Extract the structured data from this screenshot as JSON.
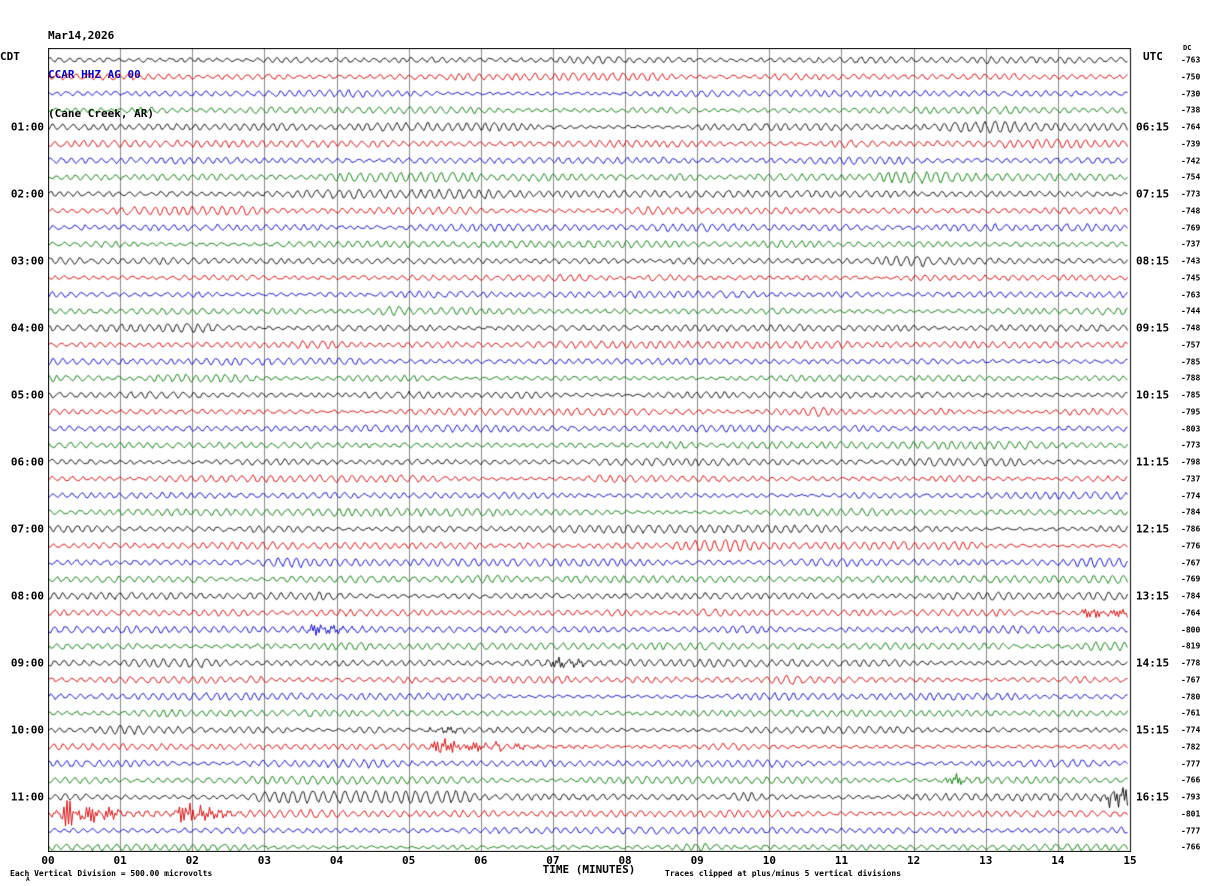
{
  "header": {
    "date": "Mar14,2026",
    "station": "CCAR HHZ AG 00",
    "location": "(Cane Creek, AR)",
    "station_color": "#0000bb"
  },
  "axis": {
    "left_header": "CDT",
    "right_header": "UTC",
    "dc_header": "DC",
    "xlabel": "TIME (MINUTES)",
    "x_ticks": [
      "00",
      "01",
      "02",
      "03",
      "04",
      "05",
      "06",
      "07",
      "08",
      "09",
      "10",
      "11",
      "12",
      "13",
      "14",
      "15"
    ]
  },
  "footer": {
    "left": "Each Vertical Division =  500.00 microvolts",
    "right": "Traces clipped at plus/minus 5 vertical divisions",
    "corner_mark": "A"
  },
  "chart_data": {
    "type": "line",
    "subtype": "helicorder-seismogram",
    "title": "CCAR HHZ AG 00 (Cane Creek, AR) Mar14,2026",
    "xlabel": "TIME (MINUTES)",
    "x_range_minutes": [
      0,
      15
    ],
    "minutes_per_row": 15,
    "rows_count": 48,
    "trace_colors": [
      "#000000",
      "#cc0000",
      "#0000bb",
      "#007700"
    ],
    "grid_color": "#888888",
    "left_labels_cdt": [
      {
        "row": 4,
        "label": "01:00"
      },
      {
        "row": 8,
        "label": "02:00"
      },
      {
        "row": 12,
        "label": "03:00"
      },
      {
        "row": 16,
        "label": "04:00"
      },
      {
        "row": 20,
        "label": "05:00"
      },
      {
        "row": 24,
        "label": "06:00"
      },
      {
        "row": 28,
        "label": "07:00"
      },
      {
        "row": 32,
        "label": "08:00"
      },
      {
        "row": 36,
        "label": "09:00"
      },
      {
        "row": 40,
        "label": "10:00"
      },
      {
        "row": 44,
        "label": "11:00"
      }
    ],
    "right_labels_utc": [
      {
        "row": 4,
        "label": "06:15"
      },
      {
        "row": 8,
        "label": "07:15"
      },
      {
        "row": 12,
        "label": "08:15"
      },
      {
        "row": 16,
        "label": "09:15"
      },
      {
        "row": 20,
        "label": "10:15"
      },
      {
        "row": 24,
        "label": "11:15"
      },
      {
        "row": 28,
        "label": "12:15"
      },
      {
        "row": 32,
        "label": "13:15"
      },
      {
        "row": 36,
        "label": "14:15"
      },
      {
        "row": 40,
        "label": "15:15"
      },
      {
        "row": 44,
        "label": "16:15"
      }
    ],
    "dc_values": [
      "-763",
      "-750",
      "-730",
      "-738",
      "-764",
      "-739",
      "-742",
      "-754",
      "-773",
      "-748",
      "-769",
      "-737",
      "-743",
      "-745",
      "-763",
      "-744",
      "-748",
      "-757",
      "-785",
      "-788",
      "-785",
      "-795",
      "-803",
      "-773",
      "-798",
      "-737",
      "-774",
      "-784",
      "-786",
      "-776",
      "-767",
      "-769",
      "-784",
      "-764",
      "-800",
      "-819",
      "-778",
      "-767",
      "-780",
      "-761",
      "-774",
      "-782",
      "-777",
      "-766",
      "-793",
      "-801",
      "-777",
      "-766"
    ],
    "notable_bursts": [
      {
        "row": 33,
        "minute": 14.4,
        "amp": 5,
        "dur": 0.7
      },
      {
        "row": 34,
        "minute": 3.7,
        "amp": 5,
        "dur": 0.35
      },
      {
        "row": 36,
        "minute": 7.0,
        "amp": 5,
        "dur": 0.3
      },
      {
        "row": 40,
        "minute": 5.3,
        "amp": 4,
        "dur": 0.4
      },
      {
        "row": 41,
        "minute": 5.4,
        "amp": 8,
        "dur": 0.7
      },
      {
        "row": 43,
        "minute": 12.5,
        "amp": 7,
        "dur": 0.2
      },
      {
        "row": 44,
        "minute": 14.7,
        "amp": 13,
        "dur": 0.35
      },
      {
        "row": 45,
        "minute": 0.25,
        "amp": 14,
        "dur": 0.5
      },
      {
        "row": 45,
        "minute": 1.85,
        "amp": 11,
        "dur": 0.35
      }
    ]
  }
}
